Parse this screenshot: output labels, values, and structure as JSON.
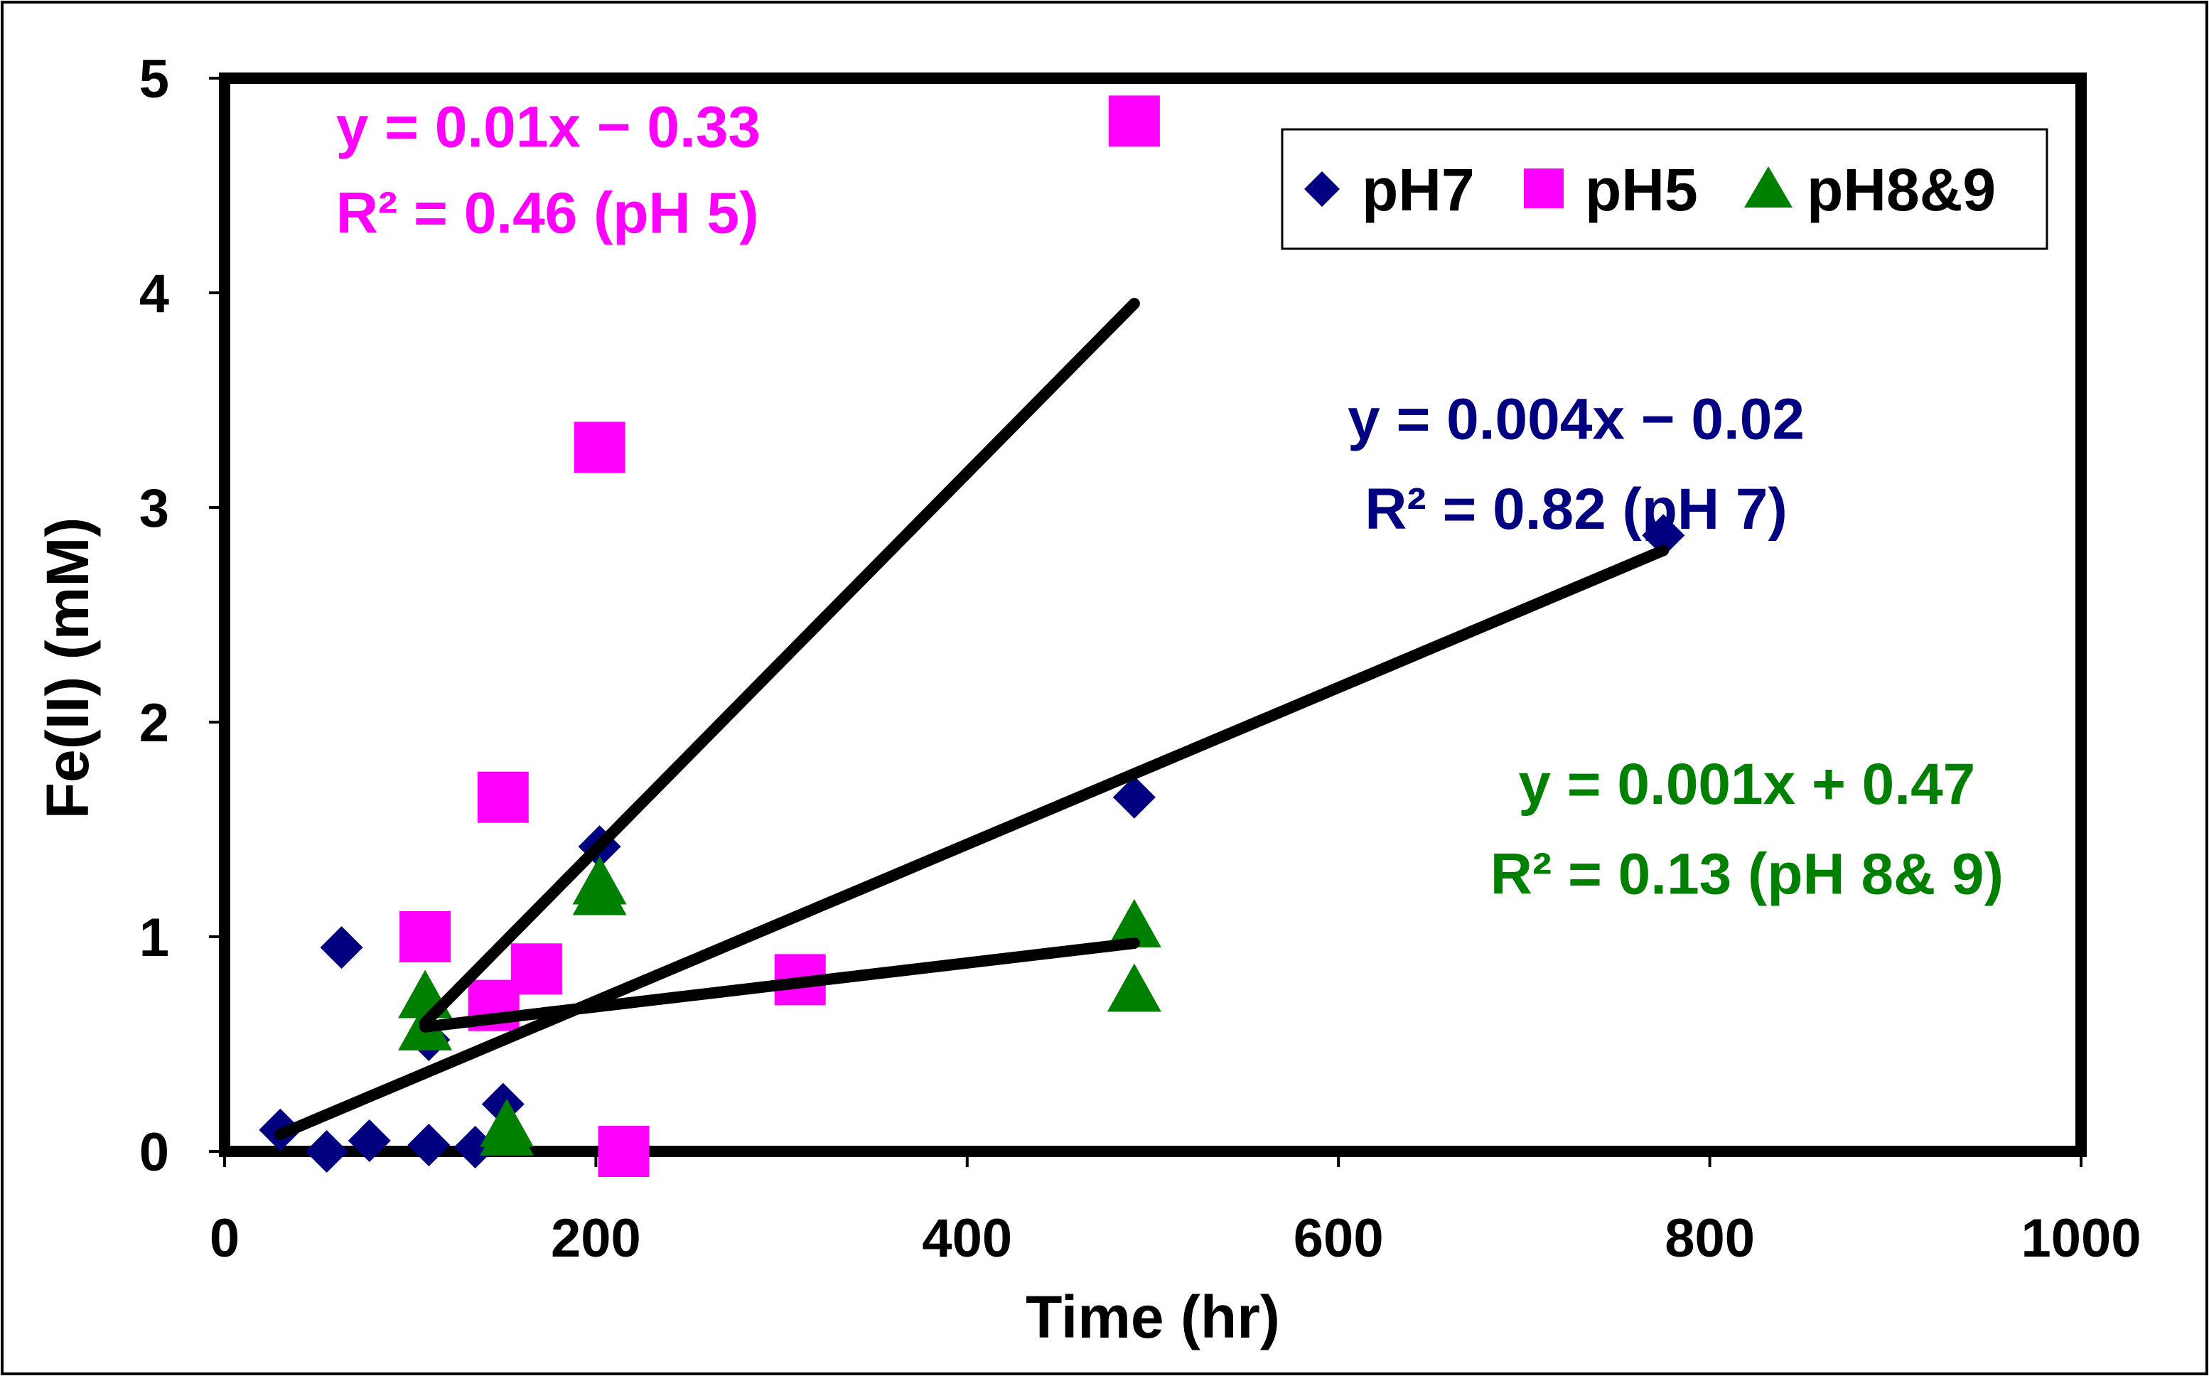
{
  "chart_data": {
    "type": "scatter",
    "title": "",
    "xlabel": "Time (hr)",
    "ylabel": "Fe(II) (mM)",
    "xlim": [
      0,
      1000
    ],
    "ylim": [
      0,
      5
    ],
    "xticks": [
      0,
      200,
      400,
      600,
      800,
      1000
    ],
    "yticks": [
      0,
      1,
      2,
      3,
      4,
      5
    ],
    "grid": false,
    "legend_position": "top-right",
    "series": [
      {
        "name": "pH7",
        "marker": "diamond",
        "color": "#000080",
        "points": [
          {
            "x": 30,
            "y": 0.1
          },
          {
            "x": 55,
            "y": 0.0
          },
          {
            "x": 63,
            "y": 0.95
          },
          {
            "x": 78,
            "y": 0.05
          },
          {
            "x": 110,
            "y": 0.03
          },
          {
            "x": 110,
            "y": 0.52
          },
          {
            "x": 135,
            "y": 0.02
          },
          {
            "x": 150,
            "y": 0.22
          },
          {
            "x": 202,
            "y": 1.42
          },
          {
            "x": 490,
            "y": 1.65
          },
          {
            "x": 775,
            "y": 2.87
          }
        ]
      },
      {
        "name": "pH5",
        "marker": "square",
        "color": "#ff00ff",
        "points": [
          {
            "x": 108,
            "y": 1.0
          },
          {
            "x": 145,
            "y": 0.68
          },
          {
            "x": 150,
            "y": 1.65
          },
          {
            "x": 168,
            "y": 0.85
          },
          {
            "x": 202,
            "y": 3.28
          },
          {
            "x": 215,
            "y": 0.0
          },
          {
            "x": 310,
            "y": 0.8
          },
          {
            "x": 490,
            "y": 4.8
          }
        ]
      },
      {
        "name": "pH8&9",
        "marker": "triangle",
        "color": "#008000",
        "points": [
          {
            "x": 108,
            "y": 0.72
          },
          {
            "x": 108,
            "y": 0.57
          },
          {
            "x": 152,
            "y": 0.08
          },
          {
            "x": 152,
            "y": 0.12
          },
          {
            "x": 202,
            "y": 1.2
          },
          {
            "x": 202,
            "y": 1.25
          },
          {
            "x": 490,
            "y": 1.05
          },
          {
            "x": 490,
            "y": 0.75
          }
        ]
      }
    ],
    "trendlines": [
      {
        "name": "pH5 fit",
        "x": [
          108,
          490
        ],
        "y": [
          0.6,
          3.95
        ],
        "color": "#000000"
      },
      {
        "name": "pH7 fit",
        "x": [
          30,
          775
        ],
        "y": [
          0.08,
          2.8
        ],
        "color": "#000000"
      },
      {
        "name": "pH8&9 fit",
        "x": [
          108,
          490
        ],
        "y": [
          0.58,
          0.97
        ],
        "color": "#000000"
      }
    ],
    "annotations": [
      {
        "lines": [
          "y = 0.01x − 0.33",
          "R² = 0.46 (pH 5)"
        ],
        "color": "#ff00ff",
        "anchor": "left",
        "x": 60,
        "y": [
          4.68,
          4.28
        ]
      },
      {
        "lines": [
          "y = 0.004x − 0.02",
          "R² = 0.82 (pH 7)"
        ],
        "color": "#000080",
        "anchor": "middle",
        "x": 728,
        "y": [
          3.32,
          2.9
        ]
      },
      {
        "lines": [
          "y = 0.001x + 0.47",
          "R² = 0.13 (pH 8& 9)"
        ],
        "color": "#008000",
        "anchor": "middle",
        "x": 820,
        "y": [
          1.62,
          1.2
        ]
      }
    ]
  }
}
